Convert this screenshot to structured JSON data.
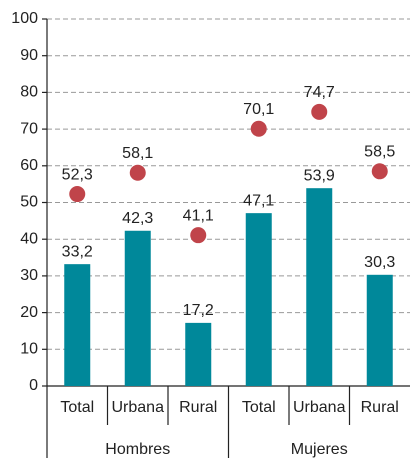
{
  "chart_data": {
    "type": "bar",
    "categories": [
      "Total",
      "Urbana",
      "Rural",
      "Total",
      "Urbana",
      "Rural"
    ],
    "groups": [
      "Hombres",
      "Mujeres"
    ],
    "series": [
      {
        "type": "bar",
        "color": "#00889a",
        "values": [
          33.2,
          42.3,
          17.2,
          47.1,
          53.9,
          30.3
        ],
        "value_labels": [
          "33,2",
          "42,3",
          "17,2",
          "47,1",
          "53,9",
          "30,3"
        ]
      },
      {
        "type": "scatter",
        "color": "#c0444a",
        "values": [
          52.3,
          58.1,
          41.1,
          70.1,
          74.7,
          58.5
        ],
        "value_labels": [
          "52,3",
          "58,1",
          "41,1",
          "70,1",
          "74,7",
          "58,5"
        ]
      }
    ],
    "ylim": [
      0,
      100
    ],
    "yticks": [
      0,
      10,
      20,
      30,
      40,
      50,
      60,
      70,
      80,
      90,
      100
    ],
    "grid": true
  }
}
